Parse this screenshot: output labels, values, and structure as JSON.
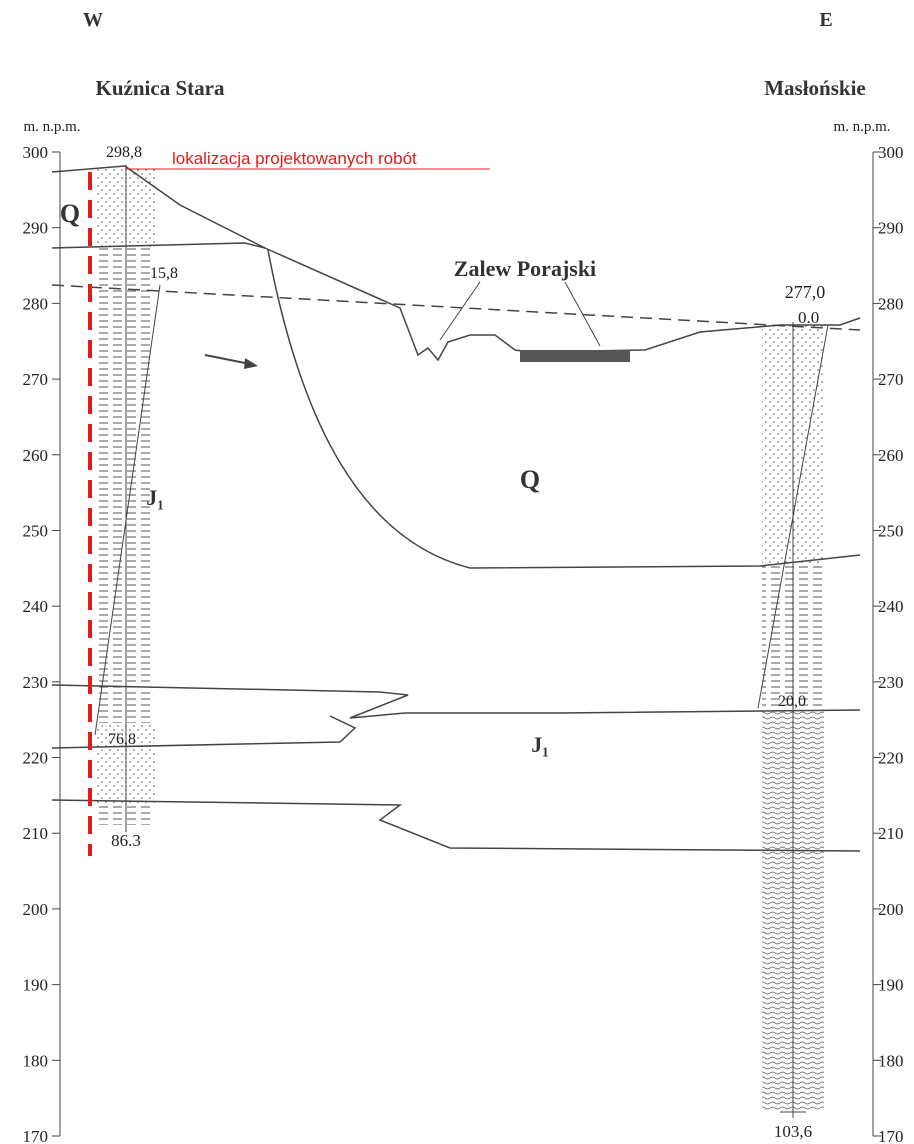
{
  "header": {
    "west": "W",
    "east": "E",
    "left_station": "Kuźnica Stara",
    "right_station": "Masłońskie"
  },
  "axis": {
    "unit_left": "m. n.p.m.",
    "unit_right": "m. n.p.m.",
    "ticks": [
      300,
      290,
      280,
      270,
      260,
      250,
      240,
      230,
      220,
      210,
      200,
      190,
      180,
      170
    ]
  },
  "labels": {
    "left_top": "298,8",
    "works": "lokalizacja projektowanych robót",
    "q_left": "Q",
    "left_water": "15,8",
    "lake": "Zalew Porajski",
    "right_top": "277,0",
    "right_water": "0.0",
    "q_center": "Q",
    "j1_left": "J₁",
    "j1_center": "J₁",
    "left_lower_water": "76,8",
    "left_depth": "86.3",
    "right_lower_water": "20,0",
    "right_depth": "103,6"
  }
}
